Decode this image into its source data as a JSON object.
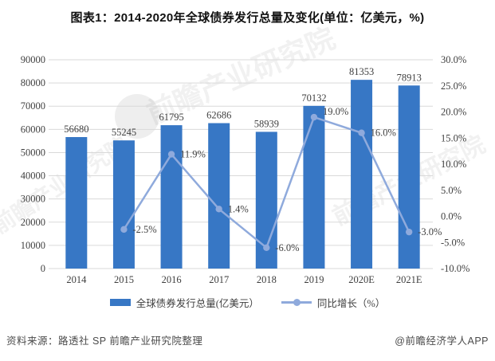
{
  "title": "图表1：2014-2020年全球债券发行总量及变化(单位：亿美元，%)",
  "watermark": {
    "text": "前瞻产业研究院"
  },
  "footer": {
    "source": "资料来源：路透社 SP 前瞻产业研究院整理",
    "brand": "@前瞻经济学人APP"
  },
  "colors": {
    "bar": "#3777C5",
    "line": "#8FAADC",
    "grid": "#D9D9D9",
    "axis_text": "#3F3F3F",
    "title_text": "#111111",
    "footer_text": "#4A4A4A"
  },
  "chart_data": {
    "type": "bar",
    "combo": "bar + line (secondary axis)",
    "title": "图表1：2014-2020年全球债券发行总量及变化(单位：亿美元，%)",
    "categories": [
      "2014",
      "2015",
      "2016",
      "2017",
      "2018",
      "2019",
      "2020E",
      "2021E"
    ],
    "series": [
      {
        "name": "全球债券发行总量(亿美元）",
        "kind": "bar",
        "axis": "left",
        "values": [
          56680,
          55245,
          61795,
          62686,
          58939,
          70132,
          81353,
          78913
        ]
      },
      {
        "name": "同比增长（%）",
        "kind": "line",
        "axis": "right",
        "values": [
          null,
          -2.5,
          11.9,
          1.4,
          -6.0,
          19.0,
          16.0,
          -3.0
        ],
        "point_labels": [
          "",
          "-2.5%",
          "11.9%",
          "1.4%",
          "-6.0%",
          "19.0%",
          "16.0%",
          "-3.0%"
        ]
      }
    ],
    "left_axis": {
      "min": 0,
      "max": 90000,
      "step": 10000,
      "ticks": [
        "0",
        "10000",
        "20000",
        "30000",
        "40000",
        "50000",
        "60000",
        "70000",
        "80000",
        "90000"
      ]
    },
    "right_axis": {
      "min": -10,
      "max": 30,
      "step": 5,
      "ticks": [
        "30.0%",
        "25.0%",
        "20.0%",
        "15.0%",
        "10.0%",
        "5.0%",
        "0.0%",
        "-5.0%",
        "-10.0%"
      ]
    },
    "grid": true,
    "legend_position": "bottom"
  }
}
